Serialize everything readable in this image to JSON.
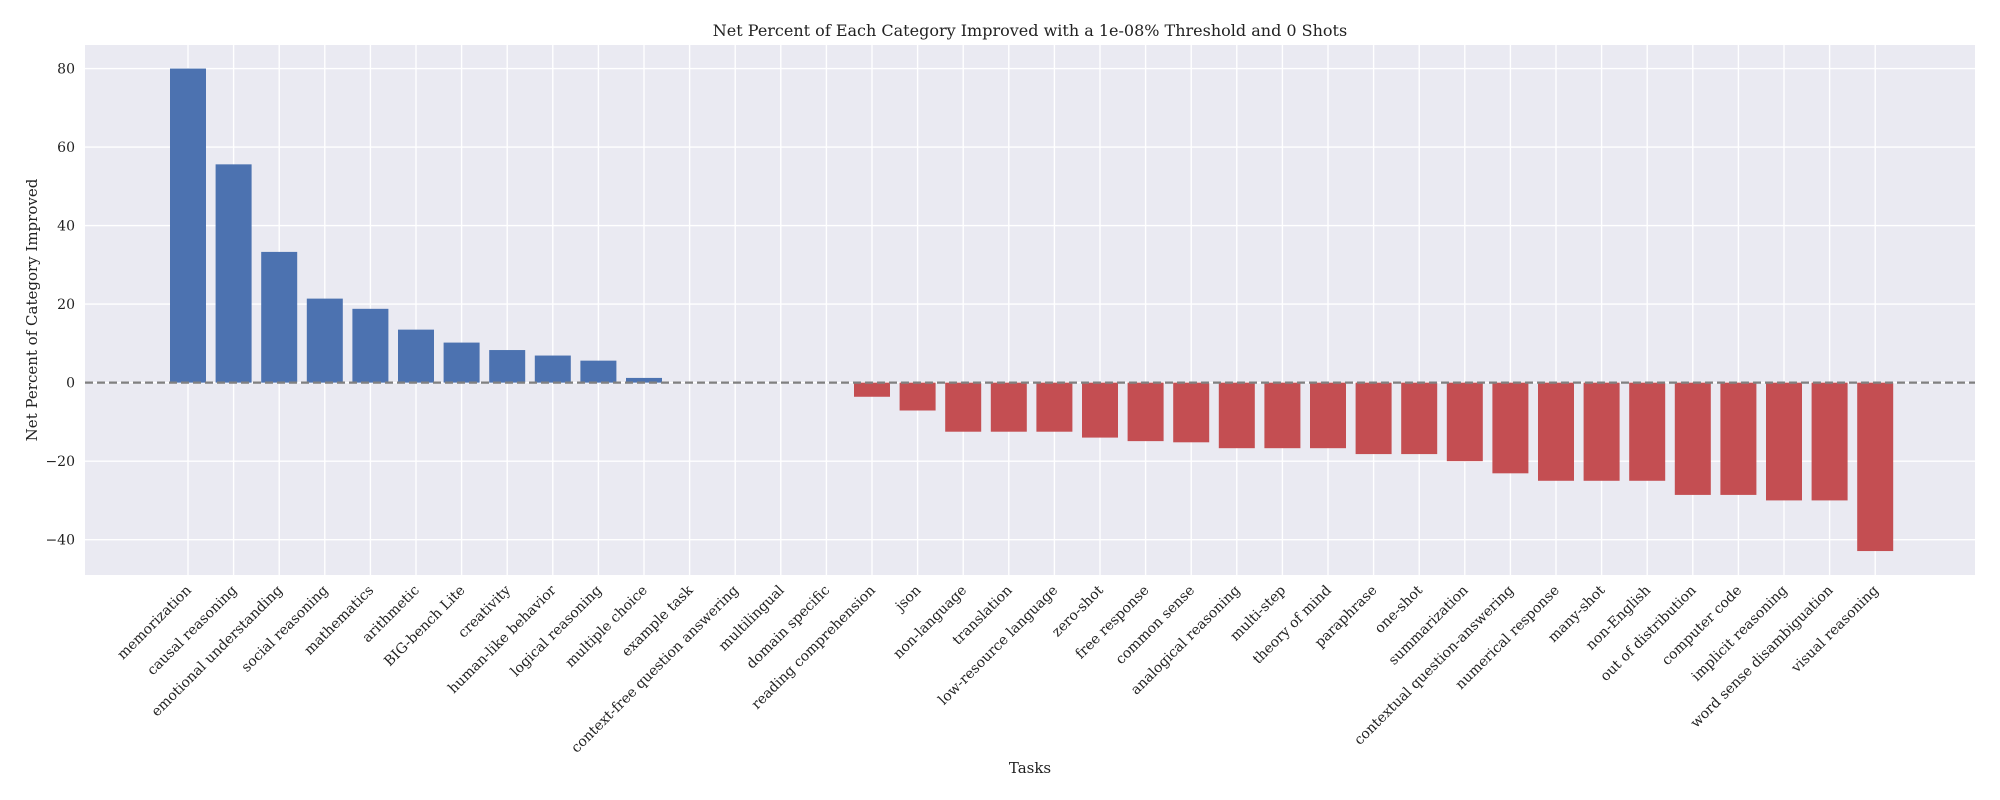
{
  "chart_data": {
    "type": "bar",
    "title": "Net Percent of Each Category Improved with a 1e-08% Threshold and 0 Shots",
    "xlabel": "Tasks",
    "ylabel": "Net Percent of Category Improved",
    "ylim": [
      -49,
      86
    ],
    "yticks": [
      -40,
      -20,
      0,
      20,
      40,
      60,
      80
    ],
    "grid": true,
    "baseline": 0,
    "colors": {
      "positive": "#4c72b0",
      "negative": "#c44e52",
      "background": "#eaeaf2",
      "baseline": "#808080"
    },
    "categories": [
      "memorization",
      "causal reasoning",
      "emotional understanding",
      "social reasoning",
      "mathematics",
      "arithmetic",
      "BIG-bench Lite",
      "creativity",
      "human-like behavior",
      "logical reasoning",
      "multiple choice",
      "example task",
      "context-free question answering",
      "multilingual",
      "domain specific",
      "reading comprehension",
      "json",
      "non-language",
      "translation",
      "low-resource language",
      "zero-shot",
      "free response",
      "common sense",
      "analogical reasoning",
      "multi-step",
      "theory of mind",
      "paraphrase",
      "one-shot",
      "summarization",
      "contextual question-answering",
      "numerical response",
      "many-shot",
      "non-English",
      "out of distribution",
      "computer code",
      "implicit reasoning",
      "word sense disambiguation",
      "visual reasoning"
    ],
    "values": [
      80.0,
      55.6,
      33.3,
      21.4,
      18.8,
      13.5,
      10.2,
      8.3,
      6.9,
      5.6,
      1.2,
      0,
      0,
      0,
      0,
      -3.6,
      -7.1,
      -12.5,
      -12.5,
      -12.5,
      -14.0,
      -14.9,
      -15.2,
      -16.7,
      -16.7,
      -16.7,
      -18.2,
      -18.2,
      -20.0,
      -23.1,
      -25.0,
      -25.0,
      -25.0,
      -28.6,
      -28.6,
      -30.0,
      -30.0,
      -42.9
    ]
  }
}
